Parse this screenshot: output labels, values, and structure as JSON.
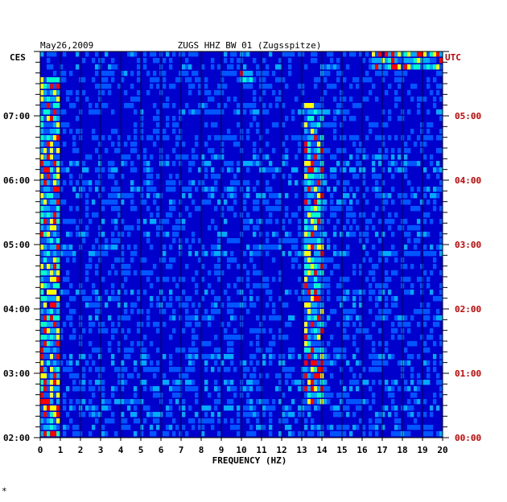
{
  "chart_data": {
    "type": "heatmap",
    "date": "May26,2009",
    "title": "ZUGS HHZ BW 01 (Zugsspitze)",
    "xlabel": "FREQUENCY (HZ)",
    "left_timezone": "CES",
    "right_timezone": "UTC",
    "xlim": [
      0,
      20
    ],
    "x_ticks": [
      "0",
      "1",
      "2",
      "3",
      "4",
      "5",
      "6",
      "7",
      "8",
      "9",
      "10",
      "11",
      "12",
      "13",
      "14",
      "15",
      "16",
      "17",
      "18",
      "19",
      "20"
    ],
    "left_time_labels": [
      "07:00",
      "06:00",
      "05:00",
      "04:00",
      "03:00",
      "02:00"
    ],
    "right_time_labels": [
      "05:00",
      "04:00",
      "03:00",
      "02:00",
      "01:00",
      "00:00"
    ],
    "time_range_local_hours": [
      2.0,
      8.0
    ],
    "rows": 60,
    "colors": {
      "axis": "#000000",
      "left_labels": "#000000",
      "right_labels": "#cc0000",
      "background_power": "#0000cc",
      "mid_power": "#00aaff",
      "high_power": "#ffff00",
      "peak_power": "#ff0000"
    },
    "features": [
      {
        "desc": "broadband low-frequency energy",
        "freq_hz": [
          0,
          1
        ],
        "hours_local": [
          2.0,
          7.6
        ]
      },
      {
        "desc": "recurring band near 13.5 Hz",
        "freq_hz": [
          13.2,
          14.0
        ],
        "hours_local": [
          2.5,
          7.2
        ]
      },
      {
        "desc": "strong high-frequency burst",
        "freq_hz": [
          16.5,
          20
        ],
        "hours_local": [
          7.75,
          8.0
        ]
      },
      {
        "desc": "short event near 10.3 Hz",
        "freq_hz": [
          10.0,
          10.6
        ],
        "hours_local": [
          7.55,
          7.65
        ]
      }
    ]
  },
  "footer_mark": "*"
}
